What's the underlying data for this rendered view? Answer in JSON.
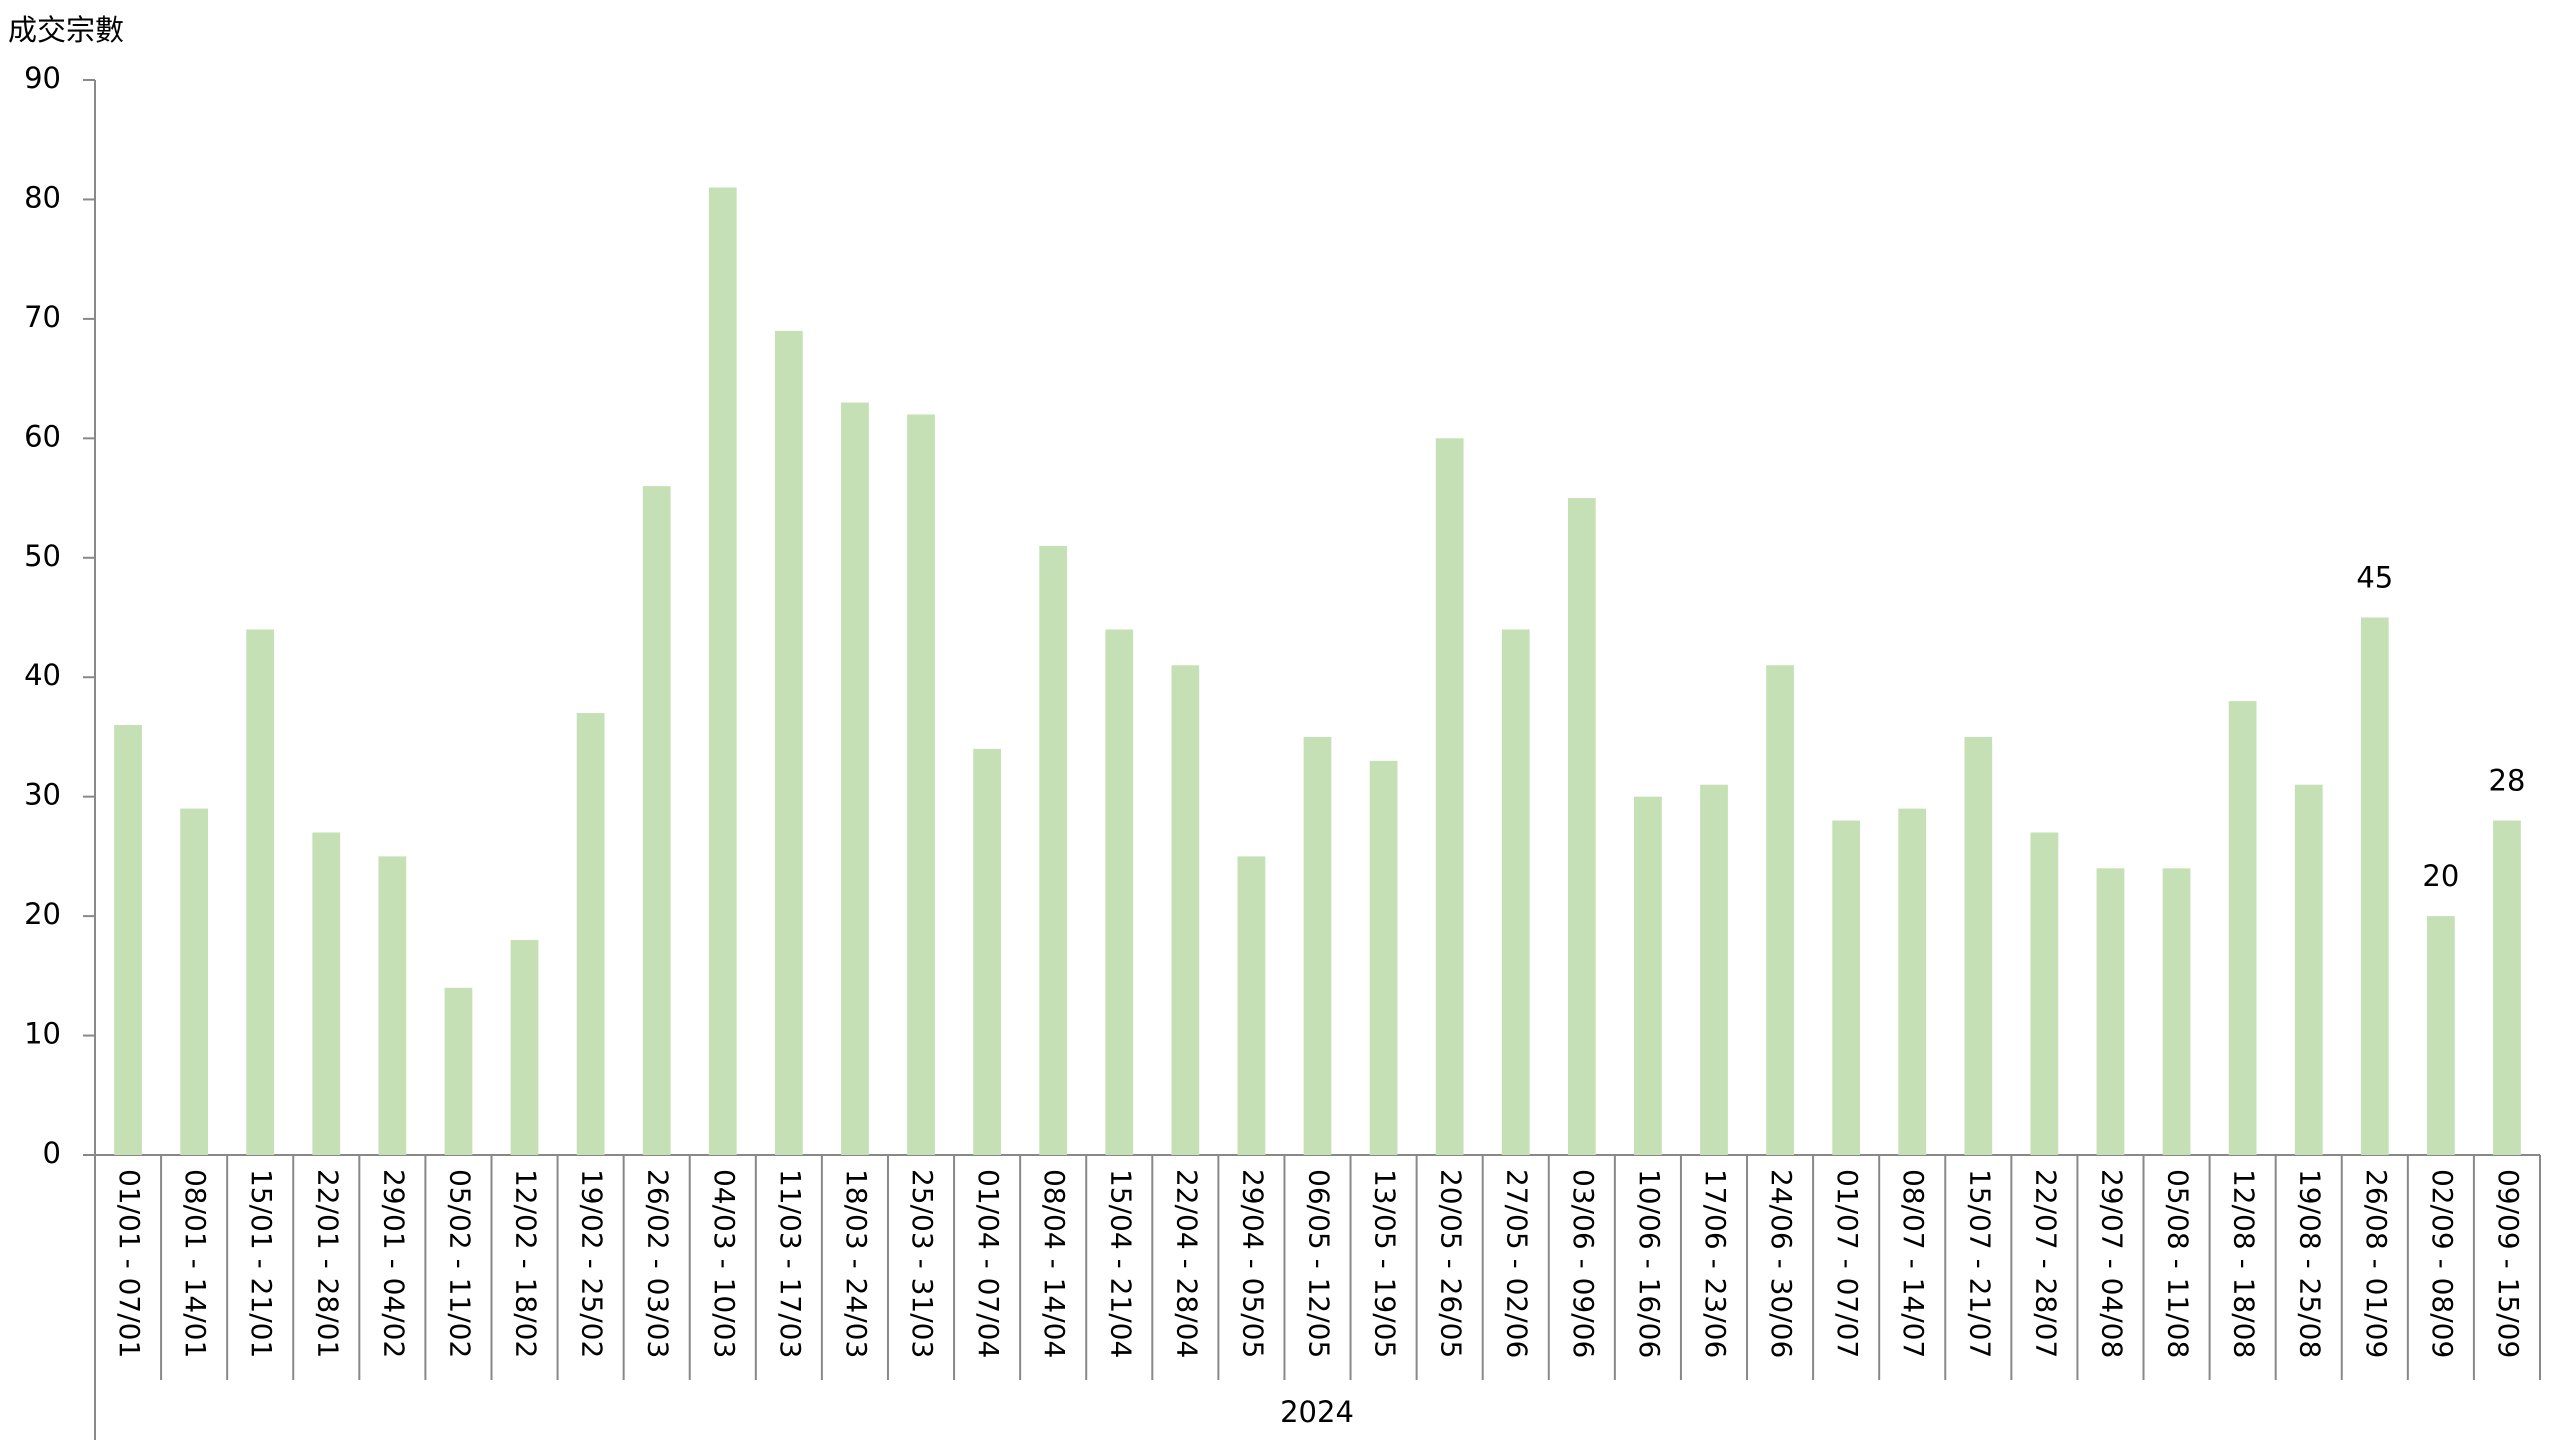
{
  "chart_data": {
    "type": "bar",
    "y_label": "成交宗數",
    "group_label": "2024",
    "categories": [
      "01/01 - 07/01",
      "08/01 - 14/01",
      "15/01 - 21/01",
      "22/01 - 28/01",
      "29/01 - 04/02",
      "05/02 - 11/02",
      "12/02 - 18/02",
      "19/02 - 25/02",
      "26/02 - 03/03",
      "04/03 - 10/03",
      "11/03 - 17/03",
      "18/03 - 24/03",
      "25/03 - 31/03",
      "01/04 - 07/04",
      "08/04 - 14/04",
      "15/04 - 21/04",
      "22/04 - 28/04",
      "29/04 - 05/05",
      "06/05 - 12/05",
      "13/05 - 19/05",
      "20/05 - 26/05",
      "27/05 - 02/06",
      "03/06 - 09/06",
      "10/06 - 16/06",
      "17/06 - 23/06",
      "24/06 - 30/06",
      "01/07 - 07/07",
      "08/07 - 14/07",
      "15/07 - 21/07",
      "22/07 - 28/07",
      "29/07 - 04/08",
      "05/08 - 11/08",
      "12/08 - 18/08",
      "19/08 - 25/08",
      "26/08 - 01/09",
      "02/09 - 08/09",
      "09/09 - 15/09"
    ],
    "values": [
      36,
      29,
      44,
      27,
      25,
      14,
      18,
      37,
      56,
      81,
      69,
      63,
      62,
      34,
      51,
      44,
      41,
      25,
      35,
      33,
      60,
      44,
      55,
      30,
      31,
      41,
      28,
      29,
      35,
      27,
      24,
      24,
      38,
      31,
      45,
      20,
      28
    ],
    "value_labels": [
      null,
      null,
      null,
      null,
      null,
      null,
      null,
      null,
      null,
      null,
      null,
      null,
      null,
      null,
      null,
      null,
      null,
      null,
      null,
      null,
      null,
      null,
      null,
      null,
      null,
      null,
      null,
      null,
      null,
      null,
      null,
      null,
      null,
      null,
      "45",
      "20",
      "28"
    ],
    "color": "#c5e0b4",
    "ylim": [
      0,
      90
    ],
    "yticks": [
      0,
      10,
      20,
      30,
      40,
      50,
      60,
      70,
      80,
      90
    ],
    "grid": false
  }
}
